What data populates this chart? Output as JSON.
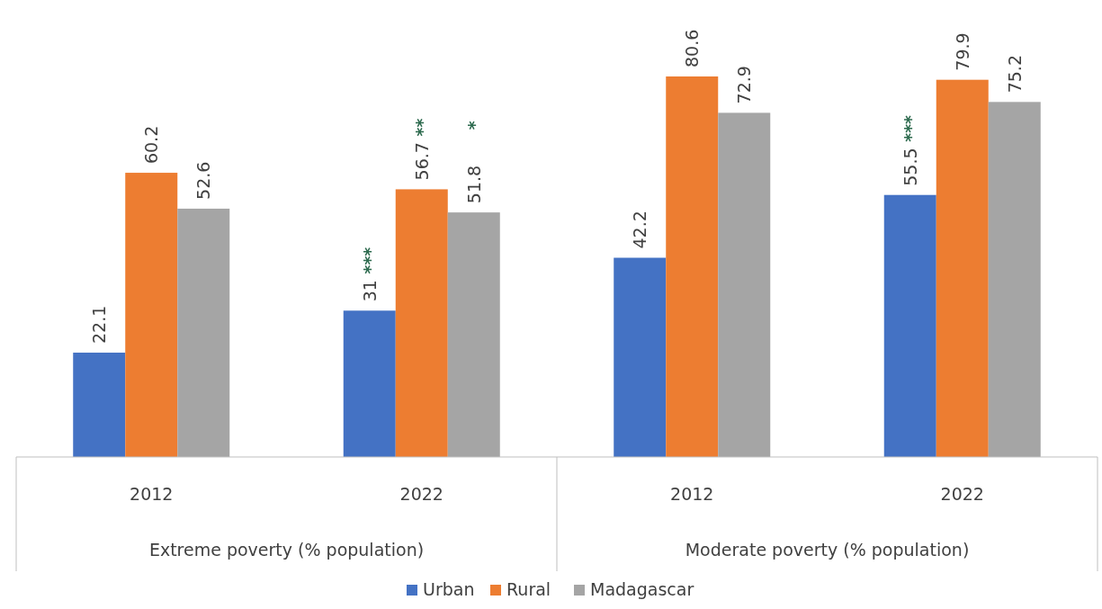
{
  "chart_data": {
    "type": "bar",
    "categories": [
      "2012",
      "2022",
      "2012",
      "2022"
    ],
    "series": [
      {
        "name": "Urban",
        "color": "#4472c4",
        "values": [
          22.1,
          31,
          42.2,
          55.5
        ],
        "value_labels": [
          "22.1",
          "31 ***",
          "42.2",
          "55.5 ***"
        ]
      },
      {
        "name": "Rural",
        "color": "#ed7d31",
        "values": [
          60.2,
          56.7,
          80.6,
          79.9
        ],
        "value_labels": [
          "60.2",
          "56.7 **",
          "80.6",
          "79.9"
        ]
      },
      {
        "name": "Madagascar",
        "color": "#a5a5a5",
        "values": [
          52.6,
          51.8,
          72.9,
          75.2
        ],
        "value_labels": [
          "52.6",
          "51.8      *",
          "72.9",
          "75.2"
        ]
      }
    ],
    "annotations": [
      "Extreme poverty (% population)",
      "Moderate poverty (% population)"
    ],
    "legend": "bottom",
    "grid": false
  }
}
